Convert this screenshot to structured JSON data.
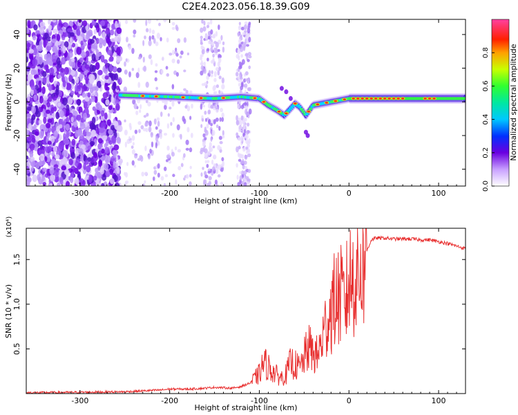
{
  "title": "C2E4.2023.056.18.39.G09",
  "colors": {
    "snr_line": "#e83030",
    "axis": "#000000",
    "background": "#ffffff"
  },
  "chart_data": [
    {
      "type": "heatmap",
      "xlabel": "Height of straight line (km)",
      "ylabel": "Frequency (Hz)",
      "xlim": [
        -360,
        130
      ],
      "ylim": [
        -50,
        49
      ],
      "xticks": [
        -300,
        -200,
        -100,
        0,
        100
      ],
      "yticks": [
        -40,
        -20,
        0,
        20,
        40
      ],
      "colorbar": {
        "label": "Normalized spectral amplitude",
        "range": [
          0.0,
          1.0
        ],
        "ticks": [
          0.0,
          0.2,
          0.4,
          0.6,
          0.8
        ],
        "colormap": "rainbow (white-violet-blue-cyan-green-yellow-red-magenta)"
      },
      "features": {
        "scatter_noise_region_km": [
          -360,
          -255
        ],
        "sparse_noise_bands_km": [
          [
            -250,
            -175
          ],
          [
            -165,
            -140
          ],
          [
            -125,
            -110
          ]
        ],
        "dominant_trace_start_km": -255,
        "dominant_trace_hz": [
          [
            -255,
            4
          ],
          [
            -200,
            3
          ],
          [
            -150,
            2
          ],
          [
            -120,
            3
          ],
          [
            -100,
            2
          ],
          [
            -90,
            -2
          ],
          [
            -80,
            -5
          ],
          [
            -72,
            -8
          ],
          [
            -60,
            -1
          ],
          [
            -55,
            -3
          ],
          [
            -48,
            -8
          ],
          [
            -40,
            -2
          ],
          [
            -20,
            0
          ],
          [
            0,
            2
          ],
          [
            40,
            2
          ],
          [
            80,
            2
          ],
          [
            130,
            2
          ]
        ]
      }
    },
    {
      "type": "line",
      "xlabel": "Height of straight line (km)",
      "ylabel": "SNR (10 * v/v)",
      "scale_note": "(x10⁴)",
      "xlim": [
        -360,
        130
      ],
      "ylim": [
        0,
        1.85
      ],
      "xticks": [
        -300,
        -200,
        -100,
        0,
        100
      ],
      "yticks": [
        0.5,
        1.0,
        1.5
      ],
      "series": [
        {
          "x": [
            -360,
            -300,
            -250,
            -230,
            -210,
            -200,
            -180,
            -160,
            -150,
            -130,
            -120,
            -110,
            -100,
            -95,
            -90,
            -85,
            -80,
            -75,
            -70,
            -65,
            -60,
            -55,
            -50,
            -45,
            -40,
            -35,
            -30,
            -25,
            -20,
            -15,
            -10,
            -5,
            0,
            5,
            10,
            15,
            20,
            25,
            30,
            40,
            50,
            60,
            70,
            80,
            90,
            100,
            110,
            120,
            130
          ],
          "y": [
            0.01,
            0.015,
            0.02,
            0.03,
            0.04,
            0.05,
            0.05,
            0.06,
            0.07,
            0.06,
            0.08,
            0.12,
            0.22,
            0.35,
            0.3,
            0.25,
            0.2,
            0.18,
            0.22,
            0.35,
            0.32,
            0.28,
            0.4,
            0.52,
            0.45,
            0.42,
            0.6,
            0.8,
            0.95,
            1.05,
            1.1,
            1.0,
            1.25,
            1.3,
            1.35,
            1.45,
            1.6,
            1.72,
            1.74,
            1.74,
            1.73,
            1.73,
            1.73,
            1.72,
            1.72,
            1.7,
            1.68,
            1.65,
            1.62
          ]
        }
      ]
    }
  ]
}
